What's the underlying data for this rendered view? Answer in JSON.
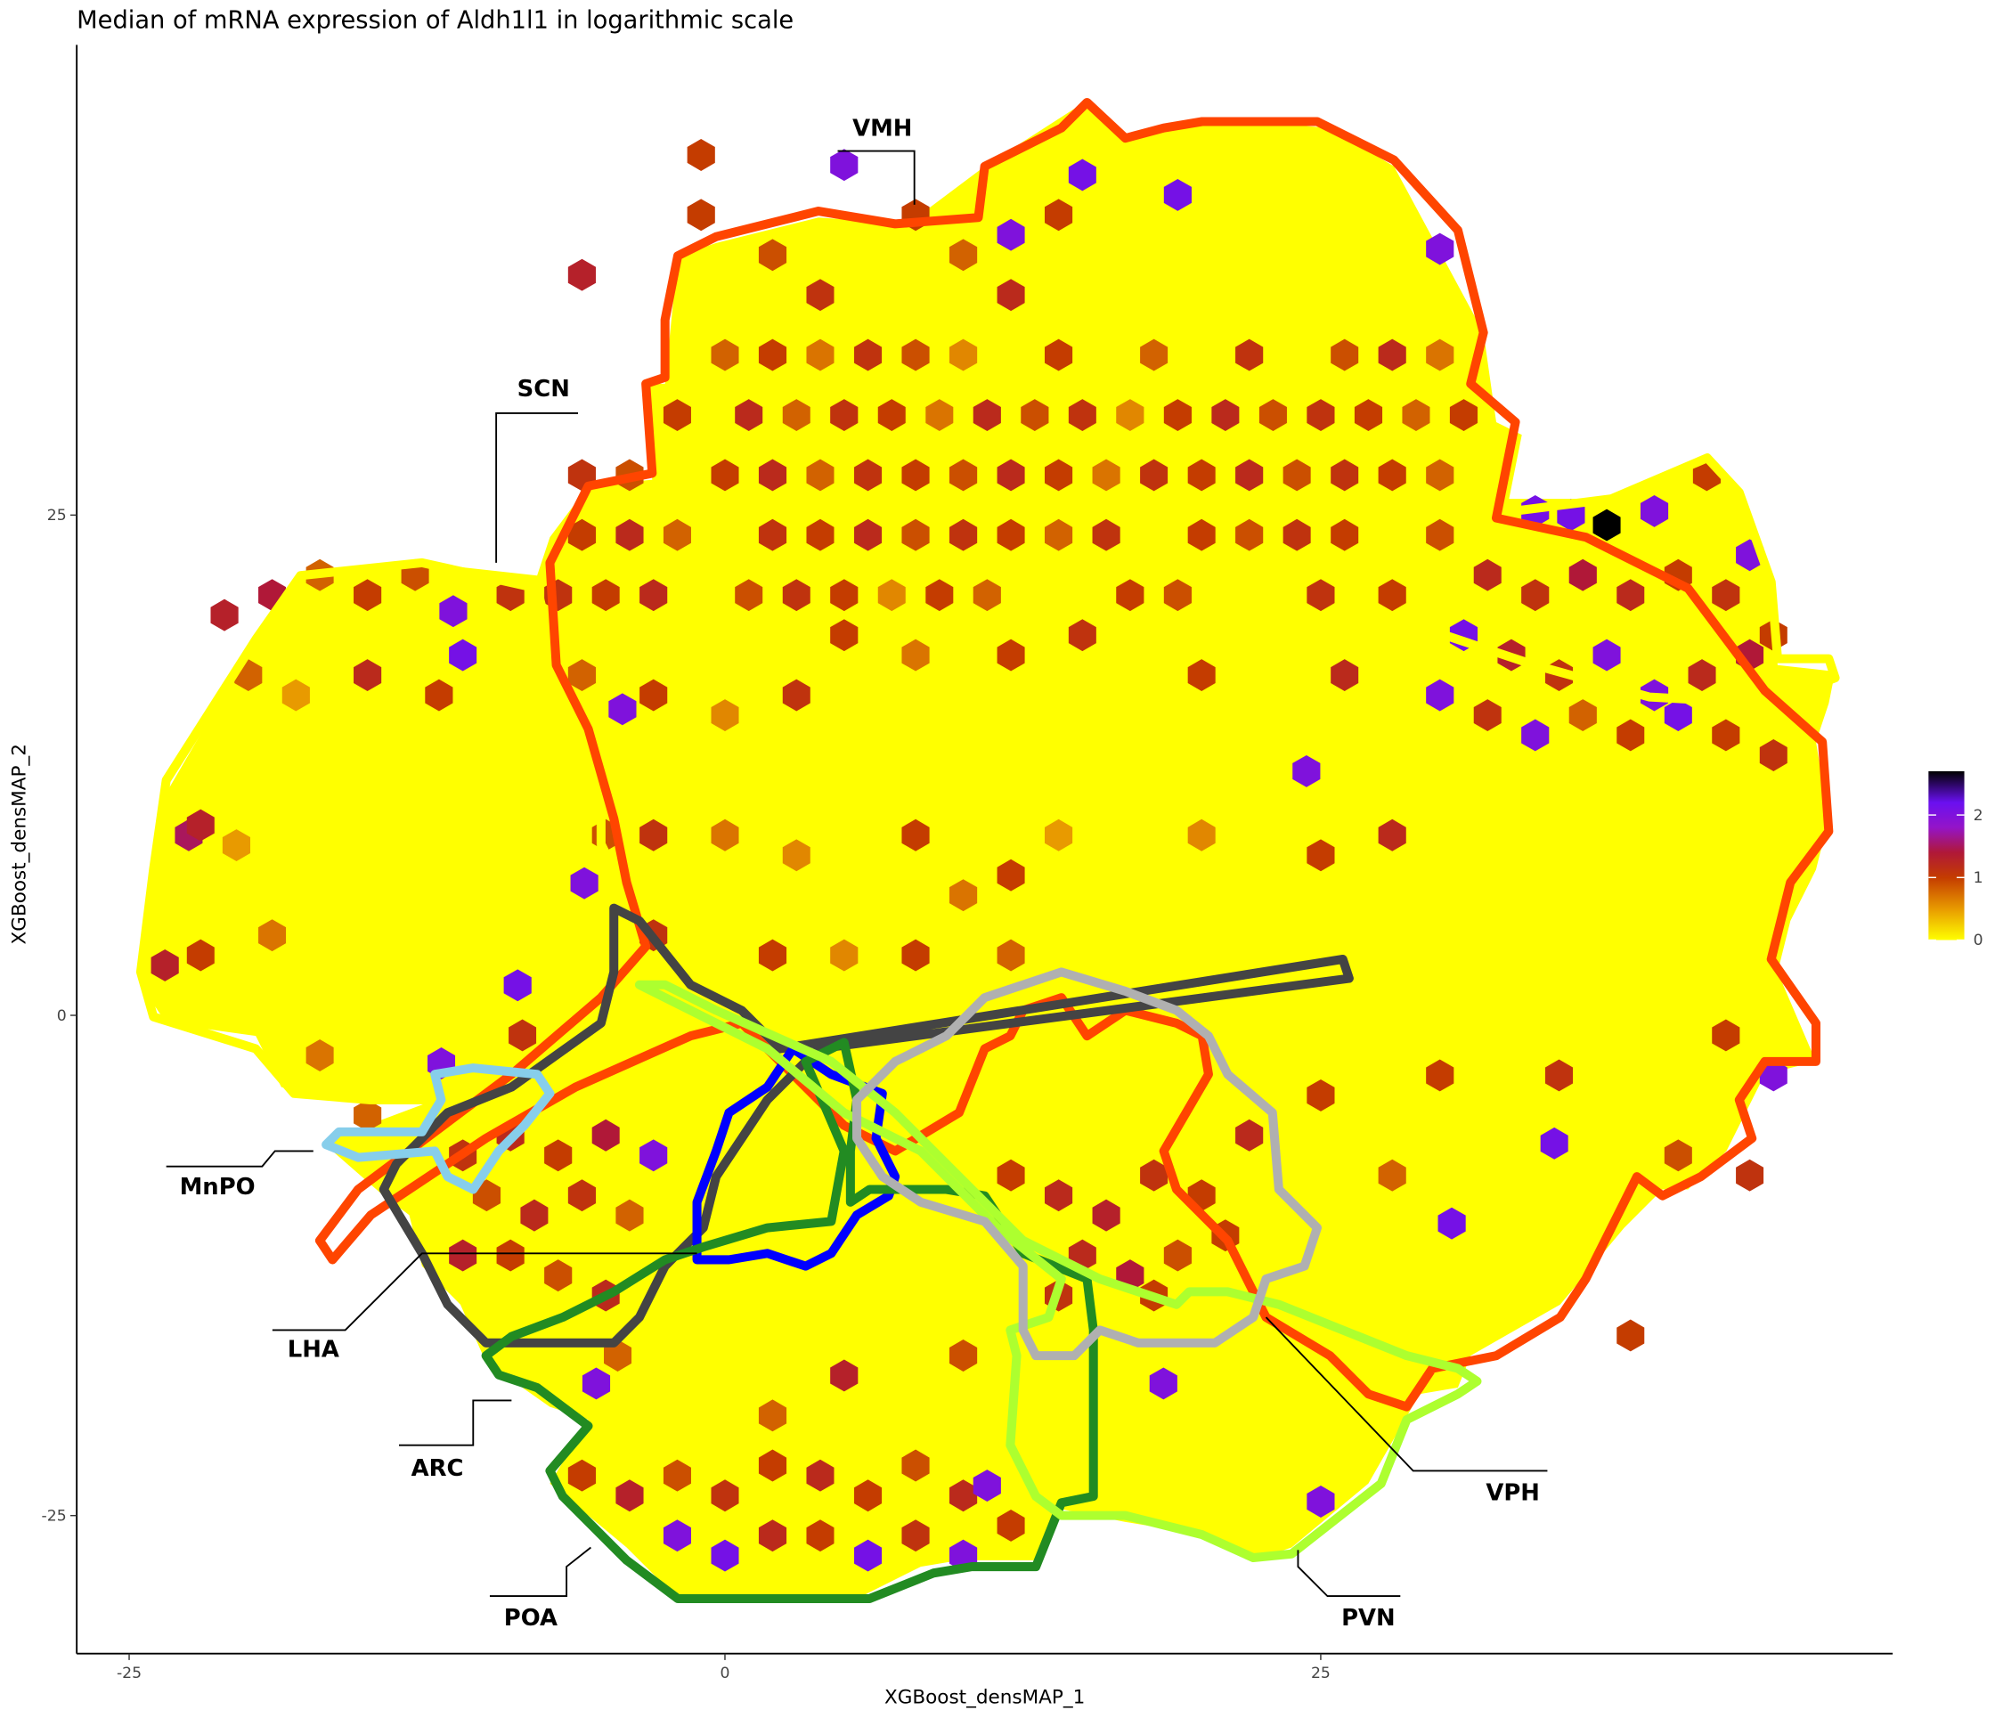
{
  "chart_data": {
    "type": "hexbin",
    "title": "Median of mRNA expression of Aldh1l1 in logarithmic scale",
    "x_label": "XGBoost_densMAP_1",
    "y_label": "XGBoost_densMAP_2",
    "xlim": [
      -27.2,
      49.0
    ],
    "ylim": [
      -31.9,
      48.5
    ],
    "xticks": [
      -25,
      0,
      25
    ],
    "yticks": [
      -25,
      0,
      25
    ],
    "colorbar": {
      "lim": [
        0,
        2.7
      ],
      "ticks": [
        0,
        1,
        2
      ]
    },
    "colorscale": [
      [
        0,
        "#ffff00"
      ],
      [
        0.5,
        "#e89a00"
      ],
      [
        1,
        "#c43c00"
      ],
      [
        1.4,
        "#b01838"
      ],
      [
        1.8,
        "#9414c8"
      ],
      [
        2.2,
        "#6a10f0"
      ],
      [
        2.7,
        "#000000"
      ]
    ],
    "annotations": [
      "VMH",
      "SCN",
      "MnPO",
      "LHA",
      "ARC",
      "POA",
      "PVN",
      "VPH"
    ],
    "hexes": [
      {
        "x": 0,
        "y": 33,
        "value": 0.8
      },
      {
        "x": 2,
        "y": 33,
        "value": 1.0
      },
      {
        "x": 4,
        "y": 33,
        "value": 0.7
      },
      {
        "x": 6,
        "y": 33,
        "value": 1.1
      },
      {
        "x": 8,
        "y": 33,
        "value": 0.9
      },
      {
        "x": 10,
        "y": 33,
        "value": 0.6
      },
      {
        "x": 14,
        "y": 33,
        "value": 1.0
      },
      {
        "x": 18,
        "y": 33,
        "value": 0.8
      },
      {
        "x": 22,
        "y": 33,
        "value": 1.1
      },
      {
        "x": 26,
        "y": 33,
        "value": 0.9
      },
      {
        "x": 28,
        "y": 33,
        "value": 1.2
      },
      {
        "x": 30,
        "y": 33,
        "value": 0.7
      },
      {
        "x": -2,
        "y": 30,
        "value": 1.0
      },
      {
        "x": 1,
        "y": 30,
        "value": 1.2
      },
      {
        "x": 3,
        "y": 30,
        "value": 0.8
      },
      {
        "x": 5,
        "y": 30,
        "value": 1.1
      },
      {
        "x": 7,
        "y": 30,
        "value": 1.0
      },
      {
        "x": 9,
        "y": 30,
        "value": 0.7
      },
      {
        "x": 11,
        "y": 30,
        "value": 1.2
      },
      {
        "x": 13,
        "y": 30,
        "value": 0.9
      },
      {
        "x": 15,
        "y": 30,
        "value": 1.1
      },
      {
        "x": 17,
        "y": 30,
        "value": 0.6
      },
      {
        "x": 19,
        "y": 30,
        "value": 1.0
      },
      {
        "x": 21,
        "y": 30,
        "value": 1.2
      },
      {
        "x": 23,
        "y": 30,
        "value": 0.9
      },
      {
        "x": 25,
        "y": 30,
        "value": 1.1
      },
      {
        "x": 27,
        "y": 30,
        "value": 1.0
      },
      {
        "x": 29,
        "y": 30,
        "value": 0.8
      },
      {
        "x": 31,
        "y": 30,
        "value": 1.0
      },
      {
        "x": -6,
        "y": 27,
        "value": 1.1
      },
      {
        "x": -4,
        "y": 27,
        "value": 0.9
      },
      {
        "x": 0,
        "y": 27,
        "value": 1.0
      },
      {
        "x": 2,
        "y": 27,
        "value": 1.2
      },
      {
        "x": 4,
        "y": 27,
        "value": 0.8
      },
      {
        "x": 6,
        "y": 27,
        "value": 1.1
      },
      {
        "x": 8,
        "y": 27,
        "value": 1.0
      },
      {
        "x": 10,
        "y": 27,
        "value": 0.9
      },
      {
        "x": 12,
        "y": 27,
        "value": 1.2
      },
      {
        "x": 14,
        "y": 27,
        "value": 1.0
      },
      {
        "x": 16,
        "y": 27,
        "value": 0.7
      },
      {
        "x": 18,
        "y": 27,
        "value": 1.1
      },
      {
        "x": 20,
        "y": 27,
        "value": 1.0
      },
      {
        "x": 22,
        "y": 27,
        "value": 1.2
      },
      {
        "x": 24,
        "y": 27,
        "value": 0.9
      },
      {
        "x": 26,
        "y": 27,
        "value": 1.1
      },
      {
        "x": 28,
        "y": 27,
        "value": 1.0
      },
      {
        "x": 30,
        "y": 27,
        "value": 0.8
      },
      {
        "x": -6,
        "y": 24,
        "value": 1.0
      },
      {
        "x": -4,
        "y": 24,
        "value": 1.2
      },
      {
        "x": -2,
        "y": 24,
        "value": 0.8
      },
      {
        "x": 2,
        "y": 24,
        "value": 1.1
      },
      {
        "x": 4,
        "y": 24,
        "value": 1.0
      },
      {
        "x": 6,
        "y": 24,
        "value": 1.2
      },
      {
        "x": 8,
        "y": 24,
        "value": 0.9
      },
      {
        "x": 10,
        "y": 24,
        "value": 1.1
      },
      {
        "x": 12,
        "y": 24,
        "value": 1.0
      },
      {
        "x": 14,
        "y": 24,
        "value": 0.8
      },
      {
        "x": 16,
        "y": 24,
        "value": 1.1
      },
      {
        "x": 20,
        "y": 24,
        "value": 1.0
      },
      {
        "x": 22,
        "y": 24,
        "value": 0.9
      },
      {
        "x": 24,
        "y": 24,
        "value": 1.1
      },
      {
        "x": 26,
        "y": 24,
        "value": 1.0
      },
      {
        "x": 30,
        "y": 24,
        "value": 0.9
      },
      {
        "x": -7,
        "y": 21,
        "value": 1.1
      },
      {
        "x": -5,
        "y": 21,
        "value": 1.0
      },
      {
        "x": -3,
        "y": 21,
        "value": 1.2
      },
      {
        "x": 1,
        "y": 21,
        "value": 0.9
      },
      {
        "x": 3,
        "y": 21,
        "value": 1.1
      },
      {
        "x": 5,
        "y": 21,
        "value": 1.0
      },
      {
        "x": 7,
        "y": 21,
        "value": 0.6
      },
      {
        "x": 9,
        "y": 21,
        "value": 1.0
      },
      {
        "x": 11,
        "y": 21,
        "value": 0.8
      },
      {
        "x": 17,
        "y": 21,
        "value": 1.0
      },
      {
        "x": 19,
        "y": 21,
        "value": 0.9
      },
      {
        "x": 25,
        "y": 21,
        "value": 1.1
      },
      {
        "x": 28,
        "y": 21,
        "value": 1.0
      },
      {
        "x": -1,
        "y": 40,
        "value": 1.0
      },
      {
        "x": 2,
        "y": 38,
        "value": 0.9
      },
      {
        "x": 4,
        "y": 36,
        "value": 1.1
      },
      {
        "x": 8,
        "y": 40,
        "value": 1.0
      },
      {
        "x": 10,
        "y": 38,
        "value": 0.8
      },
      {
        "x": 12,
        "y": 36,
        "value": 1.2
      },
      {
        "x": 14,
        "y": 40,
        "value": 1.0
      },
      {
        "x": 5,
        "y": 42.5,
        "value": 2.0
      },
      {
        "x": 15,
        "y": 42,
        "value": 2.1
      },
      {
        "x": 12,
        "y": 39,
        "value": 2.0
      },
      {
        "x": 19,
        "y": 41,
        "value": 2.1
      },
      {
        "x": 30,
        "y": 38.3,
        "value": 2.0
      },
      {
        "x": -6,
        "y": 37,
        "value": 1.3
      },
      {
        "x": -1,
        "y": 43,
        "value": 1.0
      },
      {
        "x": -19,
        "y": 21,
        "value": 1.4
      },
      {
        "x": -17,
        "y": 22,
        "value": 0.8
      },
      {
        "x": -15,
        "y": 21,
        "value": 1.0
      },
      {
        "x": -13,
        "y": 22,
        "value": 0.9
      },
      {
        "x": -11.4,
        "y": 20.2,
        "value": 2.0
      },
      {
        "x": -11,
        "y": 18,
        "value": 2.1
      },
      {
        "x": -9,
        "y": 21,
        "value": 1.1
      },
      {
        "x": -21,
        "y": 20,
        "value": 1.3
      },
      {
        "x": -20,
        "y": 17,
        "value": 0.8
      },
      {
        "x": -15,
        "y": 17,
        "value": 1.2
      },
      {
        "x": -12,
        "y": 16,
        "value": 1.0
      },
      {
        "x": -18,
        "y": 16,
        "value": 0.5
      },
      {
        "x": -23.5,
        "y": 2.5,
        "value": 1.3
      },
      {
        "x": -22,
        "y": 3,
        "value": 1.0
      },
      {
        "x": -22.5,
        "y": 9,
        "value": 1.5
      },
      {
        "x": -22,
        "y": 9.5,
        "value": 1.3
      },
      {
        "x": -20.5,
        "y": 8.5,
        "value": 0.5
      },
      {
        "x": -19,
        "y": 4,
        "value": 0.7
      },
      {
        "x": -17,
        "y": -2,
        "value": 0.7
      },
      {
        "x": -15,
        "y": -5,
        "value": 0.8
      },
      {
        "x": -8.7,
        "y": 1.5,
        "value": 2.1
      },
      {
        "x": -11.9,
        "y": -2.4,
        "value": 2.0
      },
      {
        "x": -8.5,
        "y": -1,
        "value": 1.1
      },
      {
        "x": 34,
        "y": 25.2,
        "value": 2.1
      },
      {
        "x": 35.5,
        "y": 25,
        "value": 2.1
      },
      {
        "x": 37,
        "y": 24.5,
        "value": 2.7
      },
      {
        "x": 39,
        "y": 25.2,
        "value": 2.0
      },
      {
        "x": 32,
        "y": 22,
        "value": 1.2
      },
      {
        "x": 34,
        "y": 21,
        "value": 1.1
      },
      {
        "x": 36,
        "y": 22,
        "value": 1.4
      },
      {
        "x": 38,
        "y": 21,
        "value": 1.2
      },
      {
        "x": 40,
        "y": 22,
        "value": 1.0
      },
      {
        "x": 42,
        "y": 21,
        "value": 1.1
      },
      {
        "x": 43,
        "y": 23,
        "value": 2.0
      },
      {
        "x": 31,
        "y": 19,
        "value": 2.1
      },
      {
        "x": 33,
        "y": 18,
        "value": 1.3
      },
      {
        "x": 35,
        "y": 17,
        "value": 1.1
      },
      {
        "x": 37,
        "y": 18,
        "value": 2.0
      },
      {
        "x": 39,
        "y": 16,
        "value": 2.0
      },
      {
        "x": 41,
        "y": 17,
        "value": 1.2
      },
      {
        "x": 43,
        "y": 18,
        "value": 1.4
      },
      {
        "x": 44,
        "y": 19,
        "value": 1.0
      },
      {
        "x": 32,
        "y": 15,
        "value": 1.1
      },
      {
        "x": 34,
        "y": 14,
        "value": 2.0
      },
      {
        "x": 36,
        "y": 15,
        "value": 0.8
      },
      {
        "x": 38,
        "y": 14,
        "value": 1.0
      },
      {
        "x": 40,
        "y": 15,
        "value": 2.1
      },
      {
        "x": 42,
        "y": 14,
        "value": 1.0
      },
      {
        "x": 44,
        "y": 13,
        "value": 1.1
      },
      {
        "x": 30,
        "y": 16,
        "value": 2.0
      },
      {
        "x": 24.4,
        "y": 12.2,
        "value": 2.0
      },
      {
        "x": 41.2,
        "y": 27,
        "value": 1.0
      },
      {
        "x": -6,
        "y": 17,
        "value": 0.8
      },
      {
        "x": -3,
        "y": 16,
        "value": 1.0
      },
      {
        "x": 0,
        "y": 15,
        "value": 0.6
      },
      {
        "x": 3,
        "y": 16,
        "value": 1.1
      },
      {
        "x": 5,
        "y": 19,
        "value": 1.0
      },
      {
        "x": 8,
        "y": 18,
        "value": 0.7
      },
      {
        "x": 12,
        "y": 18,
        "value": 1.0
      },
      {
        "x": 15,
        "y": 19,
        "value": 1.1
      },
      {
        "x": 20,
        "y": 17,
        "value": 1.0
      },
      {
        "x": 26,
        "y": 17,
        "value": 1.2
      },
      {
        "x": -5,
        "y": 9,
        "value": 0.9
      },
      {
        "x": -3,
        "y": 9,
        "value": 1.1
      },
      {
        "x": 0,
        "y": 9,
        "value": 0.7
      },
      {
        "x": 3,
        "y": 8,
        "value": 0.6
      },
      {
        "x": 8,
        "y": 9,
        "value": 1.0
      },
      {
        "x": 10,
        "y": 6,
        "value": 0.7
      },
      {
        "x": 12,
        "y": 7,
        "value": 1.0
      },
      {
        "x": 14,
        "y": 9,
        "value": 0.5
      },
      {
        "x": 20,
        "y": 9,
        "value": 0.6
      },
      {
        "x": 25,
        "y": 8,
        "value": 1.0
      },
      {
        "x": 28,
        "y": 9,
        "value": 1.2
      },
      {
        "x": 2,
        "y": 3,
        "value": 1.0
      },
      {
        "x": 5,
        "y": 3,
        "value": 0.6
      },
      {
        "x": -3,
        "y": 4,
        "value": 1.1
      },
      {
        "x": 8,
        "y": 3,
        "value": 1.0
      },
      {
        "x": 12,
        "y": 3,
        "value": 0.8
      },
      {
        "x": -5.9,
        "y": 6.6,
        "value": 2.0
      },
      {
        "x": -4.3,
        "y": 15.3,
        "value": 2.0
      },
      {
        "x": -11,
        "y": -7,
        "value": 1.1
      },
      {
        "x": -9,
        "y": -6,
        "value": 1.2
      },
      {
        "x": -7,
        "y": -7,
        "value": 1.0
      },
      {
        "x": -5,
        "y": -6,
        "value": 1.4
      },
      {
        "x": -3,
        "y": -7,
        "value": 2.0
      },
      {
        "x": -10,
        "y": -9,
        "value": 0.9
      },
      {
        "x": -8,
        "y": -10,
        "value": 1.2
      },
      {
        "x": -6,
        "y": -9,
        "value": 1.1
      },
      {
        "x": -4,
        "y": -10,
        "value": 0.8
      },
      {
        "x": -11,
        "y": -12,
        "value": 1.3
      },
      {
        "x": -9,
        "y": -12,
        "value": 1.0
      },
      {
        "x": -7,
        "y": -13,
        "value": 0.9
      },
      {
        "x": -5,
        "y": -14,
        "value": 1.2
      },
      {
        "x": -4.5,
        "y": -17,
        "value": 0.8
      },
      {
        "x": -6,
        "y": -23,
        "value": 1.0
      },
      {
        "x": -4,
        "y": -24,
        "value": 1.3
      },
      {
        "x": -2,
        "y": -23,
        "value": 0.9
      },
      {
        "x": 0,
        "y": -24,
        "value": 1.1
      },
      {
        "x": 2,
        "y": -22.5,
        "value": 1.0
      },
      {
        "x": 4,
        "y": -23,
        "value": 1.2
      },
      {
        "x": 6,
        "y": -24,
        "value": 1.0
      },
      {
        "x": 8,
        "y": -22.5,
        "value": 0.9
      },
      {
        "x": 10,
        "y": -24,
        "value": 1.2
      },
      {
        "x": -2,
        "y": -26,
        "value": 2.0
      },
      {
        "x": 0,
        "y": -27,
        "value": 2.1
      },
      {
        "x": 2,
        "y": -26,
        "value": 1.2
      },
      {
        "x": 4,
        "y": -26,
        "value": 1.0
      },
      {
        "x": 6,
        "y": -27,
        "value": 2.1
      },
      {
        "x": 8,
        "y": -26,
        "value": 1.1
      },
      {
        "x": 10,
        "y": -27,
        "value": 2.0
      },
      {
        "x": 12,
        "y": -25.5,
        "value": 1.0
      },
      {
        "x": 11,
        "y": -23.5,
        "value": 2.0
      },
      {
        "x": 5,
        "y": -18,
        "value": 1.3
      },
      {
        "x": 2,
        "y": -20,
        "value": 0.8
      },
      {
        "x": -5.4,
        "y": -18.4,
        "value": 2.0
      },
      {
        "x": 12,
        "y": -8,
        "value": 1.0
      },
      {
        "x": 14,
        "y": -9,
        "value": 1.2
      },
      {
        "x": 16,
        "y": -10,
        "value": 1.3
      },
      {
        "x": 18,
        "y": -8,
        "value": 1.1
      },
      {
        "x": 20,
        "y": -9,
        "value": 1.0
      },
      {
        "x": 15,
        "y": -12,
        "value": 1.2
      },
      {
        "x": 17,
        "y": -13,
        "value": 1.4
      },
      {
        "x": 19,
        "y": -12,
        "value": 0.9
      },
      {
        "x": 21,
        "y": -11,
        "value": 1.0
      },
      {
        "x": 14,
        "y": -14,
        "value": 1.1
      },
      {
        "x": 18,
        "y": -14,
        "value": 1.0
      },
      {
        "x": 22,
        "y": -6,
        "value": 1.2
      },
      {
        "x": 25,
        "y": -4,
        "value": 1.0
      },
      {
        "x": 28,
        "y": -8,
        "value": 0.8
      },
      {
        "x": 34.8,
        "y": -6.4,
        "value": 2.1
      },
      {
        "x": 30,
        "y": -3,
        "value": 1.0
      },
      {
        "x": 35,
        "y": -3,
        "value": 1.1
      },
      {
        "x": 42,
        "y": -1,
        "value": 1.0
      },
      {
        "x": 44,
        "y": -3,
        "value": 2.0
      },
      {
        "x": 40,
        "y": -7,
        "value": 0.9
      },
      {
        "x": 43,
        "y": -8,
        "value": 1.1
      },
      {
        "x": 38,
        "y": -16,
        "value": 1.0
      },
      {
        "x": 25,
        "y": -24.3,
        "value": 2.0
      },
      {
        "x": 30.5,
        "y": -10.4,
        "value": 2.1
      },
      {
        "x": 18.4,
        "y": -18.4,
        "value": 2.0
      },
      {
        "x": 10,
        "y": -17,
        "value": 0.9
      }
    ]
  }
}
